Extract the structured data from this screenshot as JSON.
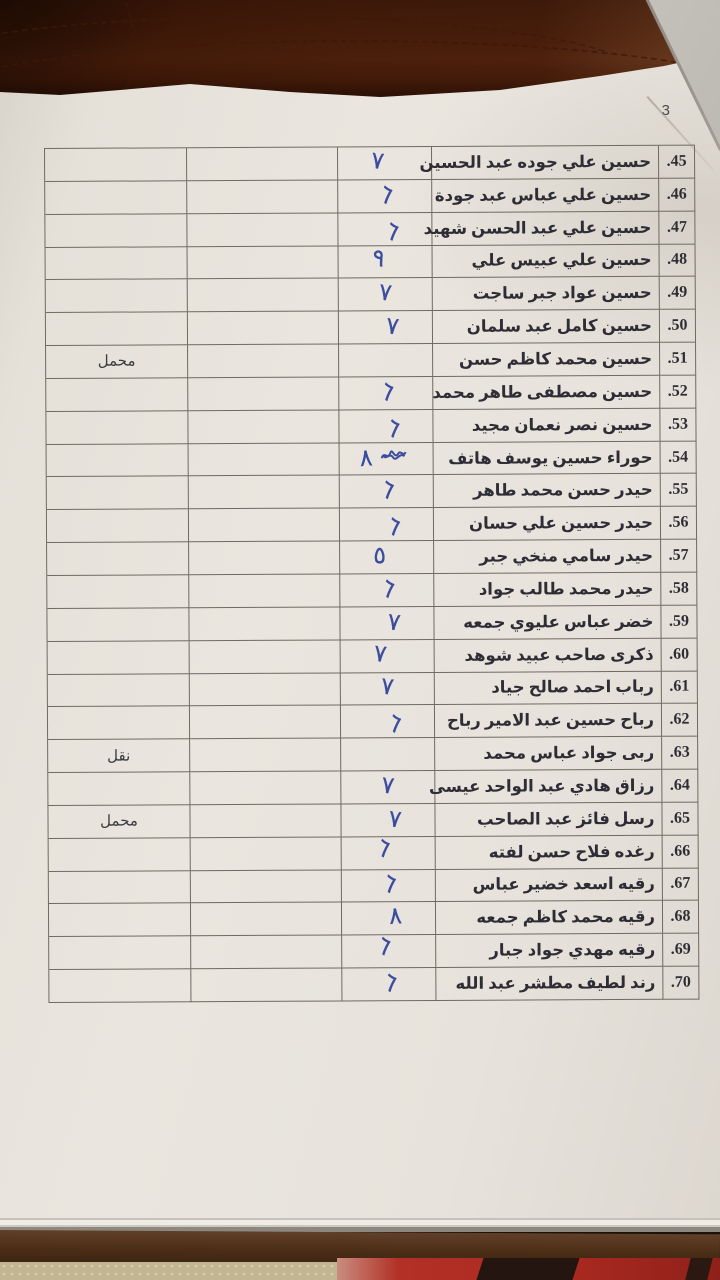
{
  "page_number": "3",
  "colors": {
    "ink_blue": "#3c4c9f",
    "paper": "#e8e4dd",
    "leather_brown": "#8a5936",
    "table_line": "#6f6b62",
    "floor_beige": "#c2b592",
    "floor_red": "#ad2a20"
  },
  "table": {
    "rows": [
      {
        "num": "45.",
        "name": "حسين علي جوده عبد الحسين",
        "mark": "٧",
        "note": "",
        "scribble": false
      },
      {
        "num": "46.",
        "name": "حسين علي عباس عبد جودة",
        "mark": "٦",
        "note": "",
        "scribble": false
      },
      {
        "num": "47.",
        "name": "حسين علي عبد الحسن شهيد",
        "mark": "٦",
        "note": "",
        "scribble": false
      },
      {
        "num": "48.",
        "name": "حسين علي عبيس علي",
        "mark": "٩",
        "note": "",
        "scribble": false
      },
      {
        "num": "49.",
        "name": "حسين عواد جبر ساجت",
        "mark": "٧",
        "note": "",
        "scribble": false
      },
      {
        "num": "50.",
        "name": "حسين كامل عبد سلمان",
        "mark": "٧",
        "note": "",
        "scribble": false
      },
      {
        "num": "51.",
        "name": "حسين محمد كاظم حسن",
        "mark": "",
        "note": "محمل",
        "scribble": false
      },
      {
        "num": "52.",
        "name": "حسين مصطفى طاهر محمد",
        "mark": "٦",
        "note": "",
        "scribble": false
      },
      {
        "num": "53.",
        "name": "حسين نصر نعمان مجيد",
        "mark": "٦",
        "note": "",
        "scribble": false
      },
      {
        "num": "54.",
        "name": "حوراء حسين يوسف هاتف",
        "mark": "٨",
        "note": "",
        "scribble": true
      },
      {
        "num": "55.",
        "name": "حيدر حسن محمد طاهر",
        "mark": "٦",
        "note": "",
        "scribble": false
      },
      {
        "num": "56.",
        "name": "حيدر حسين علي حسان",
        "mark": "٦",
        "note": "",
        "scribble": false
      },
      {
        "num": "57.",
        "name": "حيدر سامي منخي جبر",
        "mark": "٥",
        "note": "",
        "scribble": false
      },
      {
        "num": "58.",
        "name": "حيدر محمد طالب جواد",
        "mark": "٦",
        "note": "",
        "scribble": false
      },
      {
        "num": "59.",
        "name": "خضر عباس عليوي جمعه",
        "mark": "٧",
        "note": "",
        "scribble": false
      },
      {
        "num": "60.",
        "name": "ذكرى صاحب عبيد شوهد",
        "mark": "٧",
        "note": "",
        "scribble": false
      },
      {
        "num": "61.",
        "name": "رباب احمد صالح جياد",
        "mark": "٧",
        "note": "",
        "scribble": false
      },
      {
        "num": "62.",
        "name": "رباح حسين عبد الامير رباح",
        "mark": "٦",
        "note": "",
        "scribble": false
      },
      {
        "num": "63.",
        "name": "ربى جواد عباس محمد",
        "mark": "",
        "note": "نقل",
        "scribble": false
      },
      {
        "num": "64.",
        "name": "رزاق هادي عبد الواحد عيسى",
        "mark": "٧",
        "note": "",
        "scribble": false
      },
      {
        "num": "65.",
        "name": "رسل فائز عبد الصاحب",
        "mark": "٧",
        "note": "محمل",
        "scribble": false
      },
      {
        "num": "66.",
        "name": "رغده فلاح حسن لفته",
        "mark": "٦",
        "note": "",
        "scribble": false
      },
      {
        "num": "67.",
        "name": "رقيه اسعد خضير عباس",
        "mark": "٦",
        "note": "",
        "scribble": false
      },
      {
        "num": "68.",
        "name": "رقيه محمد كاظم جمعه",
        "mark": "٨",
        "note": "",
        "scribble": false
      },
      {
        "num": "69.",
        "name": "رقيه مهدي جواد جبار",
        "mark": "٦",
        "note": "",
        "scribble": false
      },
      {
        "num": "70.",
        "name": "رند لطيف مطشر عبد الله",
        "mark": "٦",
        "note": "",
        "scribble": false
      }
    ]
  }
}
